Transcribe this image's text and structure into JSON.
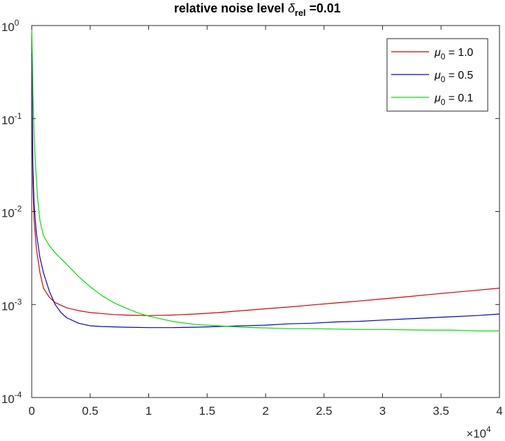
{
  "chart_data": {
    "type": "line",
    "title": {
      "prefix": "relative noise level ",
      "symbol": "δ",
      "subscript": "rel",
      "suffix": " =0.01"
    },
    "xlabel": "",
    "ylabel": "",
    "xlim": [
      0,
      40000
    ],
    "ylim": [
      0.0001,
      1
    ],
    "yscale": "log",
    "x_exponent_label": {
      "base": "×10",
      "exp": "4"
    },
    "x_ticks": [
      {
        "value": 0,
        "label": "0"
      },
      {
        "value": 5000,
        "label": "0.5"
      },
      {
        "value": 10000,
        "label": "1"
      },
      {
        "value": 15000,
        "label": "1.5"
      },
      {
        "value": 20000,
        "label": "2"
      },
      {
        "value": 25000,
        "label": "2.5"
      },
      {
        "value": 30000,
        "label": "3"
      },
      {
        "value": 35000,
        "label": "3.5"
      },
      {
        "value": 40000,
        "label": "4"
      }
    ],
    "y_ticks": [
      {
        "value": 0.0001,
        "base": "10",
        "exp": "-4"
      },
      {
        "value": 0.001,
        "base": "10",
        "exp": "-3"
      },
      {
        "value": 0.01,
        "base": "10",
        "exp": "-2"
      },
      {
        "value": 0.1,
        "base": "10",
        "exp": "-1"
      },
      {
        "value": 1,
        "base": "10",
        "exp": "0"
      }
    ],
    "grid": false,
    "legend_position": "top-right",
    "series": [
      {
        "name": {
          "symbol": "μ",
          "subscript": "0",
          "suffix": " = 1.0"
        },
        "color": "#d00000",
        "x": [
          0,
          100,
          200,
          400,
          700,
          1000,
          1500,
          2000,
          3000,
          4000,
          5000,
          6000,
          7000,
          8000,
          9000,
          10000,
          12000,
          14000,
          16000,
          18000,
          20000,
          22000,
          24000,
          26000,
          28000,
          30000,
          32000,
          34000,
          36000,
          38000,
          40000
        ],
        "y": [
          0.2,
          0.02,
          0.008,
          0.004,
          0.0022,
          0.0015,
          0.0012,
          0.00105,
          0.00092,
          0.00086,
          0.00082,
          0.0008,
          0.00078,
          0.00077,
          0.000765,
          0.00076,
          0.00077,
          0.00079,
          0.00082,
          0.00086,
          0.0009,
          0.00094,
          0.00099,
          0.00104,
          0.00109,
          0.00115,
          0.00121,
          0.00128,
          0.00135,
          0.00142,
          0.0015
        ]
      },
      {
        "name": {
          "symbol": "μ",
          "subscript": "0",
          "suffix": " = 0.5"
        },
        "color": "#0000cc",
        "x": [
          0,
          100,
          200,
          400,
          700,
          1000,
          1500,
          2000,
          2500,
          3000,
          4000,
          5000,
          6000,
          8000,
          10000,
          12000,
          14000,
          16000,
          18000,
          20000,
          22000,
          24000,
          26000,
          28000,
          30000,
          32000,
          34000,
          36000,
          38000,
          40000
        ],
        "y": [
          0.5,
          0.03,
          0.012,
          0.0058,
          0.0032,
          0.0022,
          0.0014,
          0.001,
          0.00082,
          0.00072,
          0.00063,
          0.00059,
          0.00058,
          0.00057,
          0.000565,
          0.000565,
          0.00057,
          0.00058,
          0.00059,
          0.0006,
          0.00062,
          0.00063,
          0.00065,
          0.00066,
          0.00068,
          0.0007,
          0.00072,
          0.00074,
          0.00076,
          0.00079
        ]
      },
      {
        "name": {
          "symbol": "μ",
          "subscript": "0",
          "suffix": " = 0.1"
        },
        "color": "#00dd00",
        "x": [
          0,
          50,
          100,
          200,
          300,
          500,
          700,
          1000,
          1500,
          2000,
          3000,
          4000,
          5000,
          6000,
          7000,
          8000,
          9000,
          10000,
          12000,
          14000,
          16000,
          18000,
          20000,
          22000,
          24000,
          26000,
          28000,
          30000,
          32000,
          34000,
          36000,
          38000,
          40000
        ],
        "y": [
          0.98,
          0.5,
          0.2,
          0.07,
          0.035,
          0.014,
          0.008,
          0.0055,
          0.0043,
          0.0036,
          0.0027,
          0.002,
          0.00155,
          0.00125,
          0.00105,
          0.00092,
          0.00082,
          0.00075,
          0.00066,
          0.00061,
          0.00059,
          0.00057,
          0.00056,
          0.00055,
          0.00055,
          0.000545,
          0.00054,
          0.00054,
          0.000535,
          0.00053,
          0.00053,
          0.00052,
          0.00052
        ]
      }
    ]
  }
}
